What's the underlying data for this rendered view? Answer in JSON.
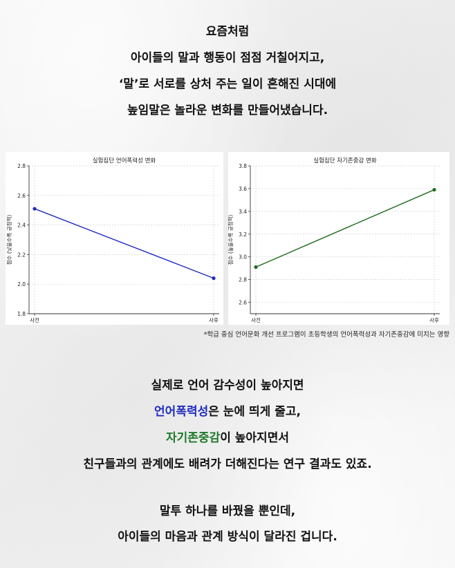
{
  "intro": {
    "lines": [
      "요즘처럼",
      "아이들의 말과 행동이 점점 거칠어지고,",
      "‘말’로 서로를 상처 주는 일이 흔해진 시대에",
      "높임말은 놀라운 변화를 만들어냈습니다."
    ]
  },
  "chart_data": [
    {
      "type": "line",
      "title": "실험집단 언어폭력성 변화",
      "xlabel": "",
      "ylabel": "점수 (낮을수록 긍정적)",
      "categories": [
        "사전",
        "사후"
      ],
      "series": [
        {
          "values": [
            2.51,
            2.04
          ],
          "color": "#1f2bc0"
        }
      ],
      "ylim": [
        1.8,
        2.8
      ],
      "yticks": [
        "1.8",
        "2.0",
        "2.2",
        "2.4",
        "2.6",
        "2.8"
      ],
      "grid": true
    },
    {
      "type": "line",
      "title": "실험집단 자기존중감 변화",
      "xlabel": "",
      "ylabel": "점수 (높을수록 긍정적)",
      "categories": [
        "사전",
        "사후"
      ],
      "series": [
        {
          "values": [
            2.91,
            3.59
          ],
          "color": "#1d6b1d"
        }
      ],
      "ylim": [
        2.5,
        3.8
      ],
      "yticks": [
        "2.6",
        "2.8",
        "3.0",
        "3.2",
        "3.4",
        "3.6",
        "3.8"
      ],
      "grid": true
    }
  ],
  "footnote": "*학급 중심 언어문화 개선 프로그램이 초등학생의 언어폭력성과 자기존중감에 미치는 영향",
  "middle": {
    "line1": "실제로 언어 감수성이 높아지면",
    "line2_highlight": "언어폭력성",
    "line2_rest": "은 눈에 띄게 줄고,",
    "line3_highlight": "자기존중감",
    "line3_rest": "이 높아지면서",
    "line4": "친구들과의 관계에도 배려가 더해진다는 연구 결과도 있죠."
  },
  "outro": {
    "lines": [
      "말투 하나를 바꿨을 뿐인데,",
      "아이들의 마음과 관계 방식이 달라진 겁니다."
    ]
  },
  "colors": {
    "highlight_blue": "#1f2bc0",
    "highlight_green": "#1d7a2a",
    "background": "#f3f3f3"
  }
}
